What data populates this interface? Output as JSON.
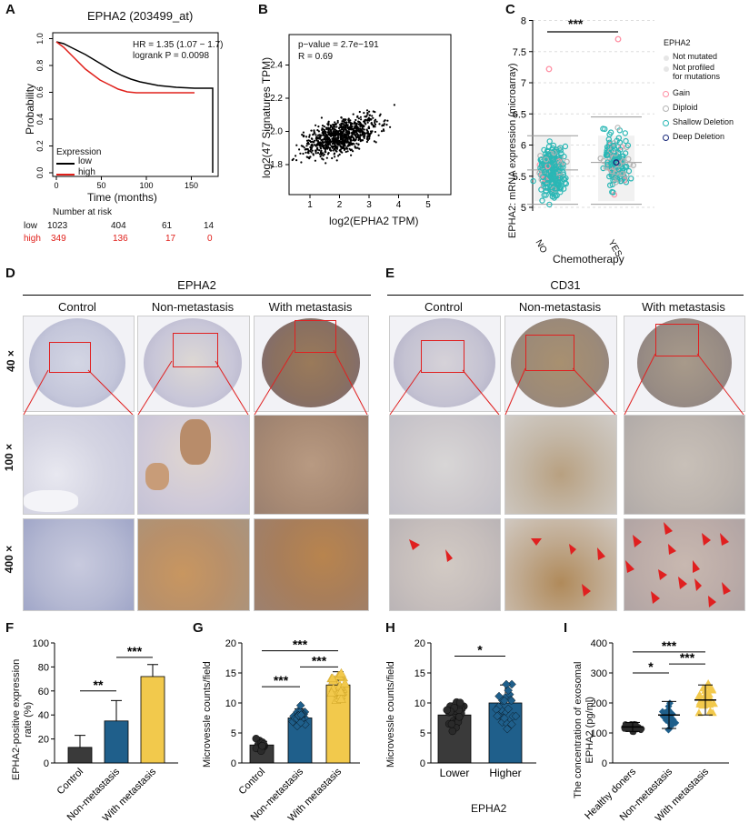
{
  "panelA": {
    "letter": "A",
    "title": "EPHA2 (203499_at)",
    "hr": "HR = 1.35 (1.07 − 1.7)",
    "logrank": "logrank P = 0.0098",
    "ylabel": "Probability",
    "xlabel": "Time (months)",
    "yticks": [
      "0.0",
      "0.2",
      "0.4",
      "0.6",
      "0.8",
      "1.0"
    ],
    "xticks": [
      "0",
      "50",
      "100",
      "150"
    ],
    "legend_title": "Expression",
    "legend": [
      {
        "label": "low",
        "color": "#000000"
      },
      {
        "label": "high",
        "color": "#e0201b"
      }
    ],
    "risk_title": "Number at risk",
    "risk": [
      {
        "group": "low",
        "values": [
          "1023",
          "404",
          "61",
          "14"
        ],
        "color": "#000000"
      },
      {
        "group": "high",
        "values": [
          "349",
          "136",
          "17",
          "0"
        ],
        "color": "#e0201b"
      }
    ]
  },
  "panelB": {
    "letter": "B",
    "pvalue": "p−value = 2.7e−191",
    "r": "R = 0.69",
    "ylabel": "log2(47 Signatures TPM)",
    "xlabel": "log2(EPHA2 TPM)",
    "xticks": [
      "1",
      "2",
      "3",
      "4",
      "5"
    ],
    "yticks": [
      "1.8",
      "2.0",
      "2.2",
      "2.4"
    ]
  },
  "panelC": {
    "letter": "C",
    "ylabel": "EPHA2: mRNA expression (microarray)",
    "xlabel": "Chemotherapy",
    "yticks": [
      "5",
      "5.5",
      "6",
      "6.5",
      "7",
      "7.5",
      "8"
    ],
    "groups": [
      "NO",
      "YES"
    ],
    "sig": "***",
    "legend_title": "EPHA2",
    "legend": [
      {
        "label": "Not mutated",
        "color": "#e6e6e6"
      },
      {
        "label": "Not profiled",
        "color": "#e6e6e6"
      },
      {
        "label": "for mutations",
        "color": ""
      },
      {
        "label": "Gain",
        "color": "#ff8fa3"
      },
      {
        "label": "Diploid",
        "color": "#b3b3b3"
      },
      {
        "label": "Shallow Deletion",
        "color": "#2ab7b5"
      },
      {
        "label": "Deep Deletion",
        "color": "#1a2a7a"
      }
    ]
  },
  "panelD": {
    "letter": "D",
    "title": "EPHA2",
    "cols": [
      "Control",
      "Non-metastasis",
      "With metastasis"
    ]
  },
  "panelE": {
    "letter": "E",
    "title": "CD31",
    "cols": [
      "Control",
      "Non-metastasis",
      "With metastasis"
    ]
  },
  "magnifications": [
    "40 ×",
    "100 ×",
    "400 ×"
  ],
  "panelF": {
    "letter": "F",
    "ylabel_line1": "EPHA2-positive expression",
    "ylabel_line2": "rate (%)",
    "yticks": [
      "0",
      "20",
      "40",
      "60",
      "80",
      "100"
    ],
    "sigs": [
      "**",
      "***"
    ],
    "chart_data": {
      "type": "bar",
      "categories": [
        "Control",
        "Non-metastasis",
        "With metastasis"
      ],
      "values": [
        13,
        35,
        72
      ],
      "errors": [
        10,
        17,
        10
      ],
      "ylim": [
        0,
        100
      ],
      "colors": [
        "#3a3a3a",
        "#1f5f8b",
        "#f2c94c"
      ]
    }
  },
  "panelG": {
    "letter": "G",
    "ylabel": "Microvessle counts/field",
    "yticks": [
      "0",
      "5",
      "10",
      "15",
      "20"
    ],
    "sigs": [
      "***",
      "***",
      "***"
    ],
    "chart_data": {
      "type": "bar",
      "categories": [
        "Control",
        "Non-metastasis",
        "With metastasis"
      ],
      "values": [
        3,
        7.5,
        13
      ],
      "errors": [
        0.6,
        1.5,
        2.2
      ],
      "ylim": [
        0,
        20
      ],
      "colors": [
        "#3a3a3a",
        "#1f5f8b",
        "#f2c94c"
      ]
    }
  },
  "panelH": {
    "letter": "H",
    "ylabel": "Microvessle counts/field",
    "xlabel": "EPHA2",
    "yticks": [
      "0",
      "5",
      "10",
      "15",
      "20"
    ],
    "sigs": [
      "*"
    ],
    "chart_data": {
      "type": "bar",
      "categories": [
        "Lower",
        "Higher"
      ],
      "values": [
        8,
        10
      ],
      "errors": [
        2,
        3
      ],
      "ylim": [
        0,
        20
      ],
      "colors": [
        "#3a3a3a",
        "#1f5f8b"
      ]
    }
  },
  "panelI": {
    "letter": "I",
    "ylabel_line1": "The concentration of exosomal",
    "ylabel_line2": "EPHA2 (pg/ml)",
    "yticks": [
      "0",
      "100",
      "200",
      "300",
      "400"
    ],
    "sigs": [
      "*",
      "***",
      "***"
    ],
    "chart_data": {
      "type": "scatter",
      "categories": [
        "Healthy doners",
        "Non-metastasis",
        "With metastasis"
      ],
      "means": [
        120,
        160,
        210
      ],
      "sd": [
        15,
        45,
        50
      ],
      "ylim": [
        0,
        400
      ],
      "colors": [
        "#3a3a3a",
        "#1f5f8b",
        "#f2c94c"
      ]
    }
  }
}
